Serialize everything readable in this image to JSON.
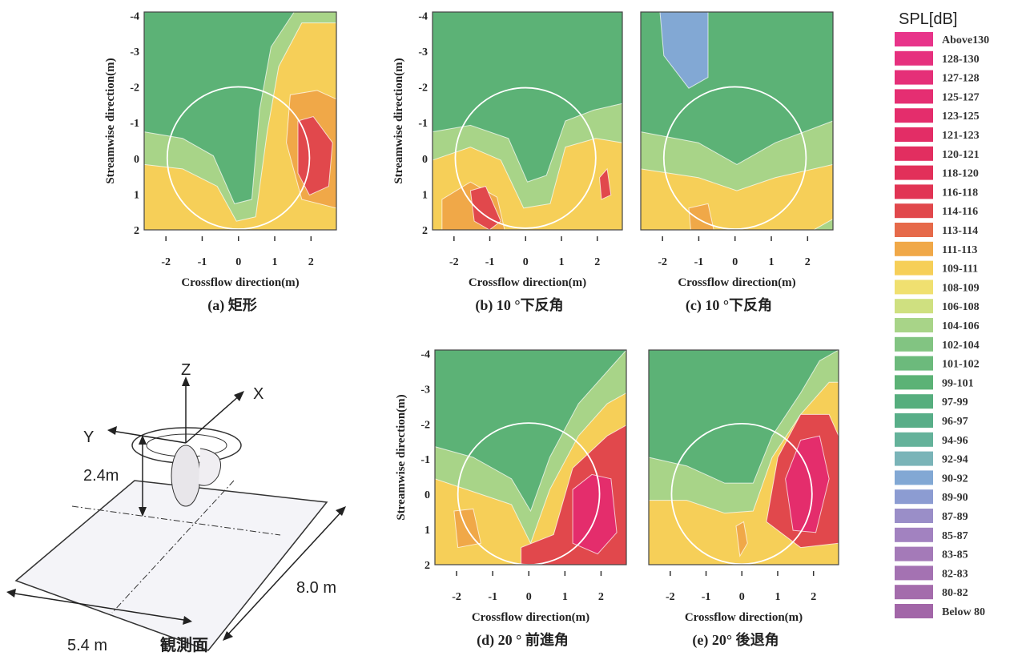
{
  "figure": {
    "panels": [
      {
        "caption": "(a)  矩形",
        "xlabel": "Crossflow direction(m)",
        "ylabel": "Streamwise direction(m)",
        "xticks": [
          -2,
          -1,
          0,
          1,
          2
        ],
        "yticks": [
          -4,
          -3,
          -2,
          -1,
          0,
          1,
          2
        ]
      },
      {
        "caption": "(b)  10 °下反角",
        "xlabel": "Crossflow direction(m)",
        "ylabel": "Streamwise direction(m)",
        "xticks": [
          -2,
          -1,
          0,
          1,
          2
        ],
        "yticks": [
          -4,
          -3,
          -2,
          -1,
          0,
          1,
          2
        ]
      },
      {
        "caption": "(c)  10 °下反角",
        "xlabel": "Crossflow direction(m)",
        "xticks": [
          -2,
          -1,
          0,
          1,
          2
        ]
      },
      {
        "caption": "(d)  20 °  前進角",
        "xlabel": "Crossflow direction(m)",
        "ylabel": "Streamwise direction(m)",
        "xticks": [
          -2,
          -1,
          0,
          1,
          2
        ],
        "yticks": [
          -4,
          -3,
          -2,
          -1,
          0,
          1,
          2
        ]
      },
      {
        "caption": "(e)  20°  後退角",
        "xlabel": "Crossflow direction(m)",
        "xticks": [
          -2,
          -1,
          0,
          1,
          2
        ]
      }
    ],
    "xlim": [
      -2.6,
      2.7
    ],
    "ylim": [
      -4.1,
      2
    ],
    "legend": {
      "title": "SPL[dB]",
      "entries": [
        {
          "label": "Above130",
          "color": "#e8348a"
        },
        {
          "label": "128-130",
          "color": "#e6307e"
        },
        {
          "label": "127-128",
          "color": "#e52f78"
        },
        {
          "label": "125-127",
          "color": "#e52e72"
        },
        {
          "label": "123-125",
          "color": "#e42d6c"
        },
        {
          "label": "121-123",
          "color": "#e32d66"
        },
        {
          "label": "120-121",
          "color": "#e22e60"
        },
        {
          "label": "118-120",
          "color": "#e2305a"
        },
        {
          "label": "116-118",
          "color": "#e13454"
        },
        {
          "label": "114-116",
          "color": "#e1484c"
        },
        {
          "label": "113-114",
          "color": "#e66a4a"
        },
        {
          "label": "111-113",
          "color": "#f0a848"
        },
        {
          "label": "109-111",
          "color": "#f6cf58"
        },
        {
          "label": "108-109",
          "color": "#f0e070"
        },
        {
          "label": "106-108",
          "color": "#cfe080"
        },
        {
          "label": "104-106",
          "color": "#a8d488"
        },
        {
          "label": "102-104",
          "color": "#82c482"
        },
        {
          "label": "101-102",
          "color": "#6cba7c"
        },
        {
          "label": "99-101",
          "color": "#5cb276"
        },
        {
          "label": "97-99",
          "color": "#56ae7e"
        },
        {
          "label": "96-97",
          "color": "#58ae88"
        },
        {
          "label": "94-96",
          "color": "#64b29a"
        },
        {
          "label": "92-94",
          "color": "#7ab4b8"
        },
        {
          "label": "90-92",
          "color": "#82a8d4"
        },
        {
          "label": "89-90",
          "color": "#8c9cd2"
        },
        {
          "label": "87-89",
          "color": "#9a8ec8"
        },
        {
          "label": "85-87",
          "color": "#a282c0"
        },
        {
          "label": "83-85",
          "color": "#a47ab8"
        },
        {
          "label": "82-83",
          "color": "#a472b2"
        },
        {
          "label": "80-82",
          "color": "#a46cac"
        },
        {
          "label": "Below 80",
          "color": "#a266a8"
        }
      ]
    },
    "diagram": {
      "z": "Z",
      "x": "X",
      "y": "Y",
      "height": "2.4m",
      "length": "8.0 m",
      "width": "5.4 m",
      "caption": "観測面"
    }
  }
}
